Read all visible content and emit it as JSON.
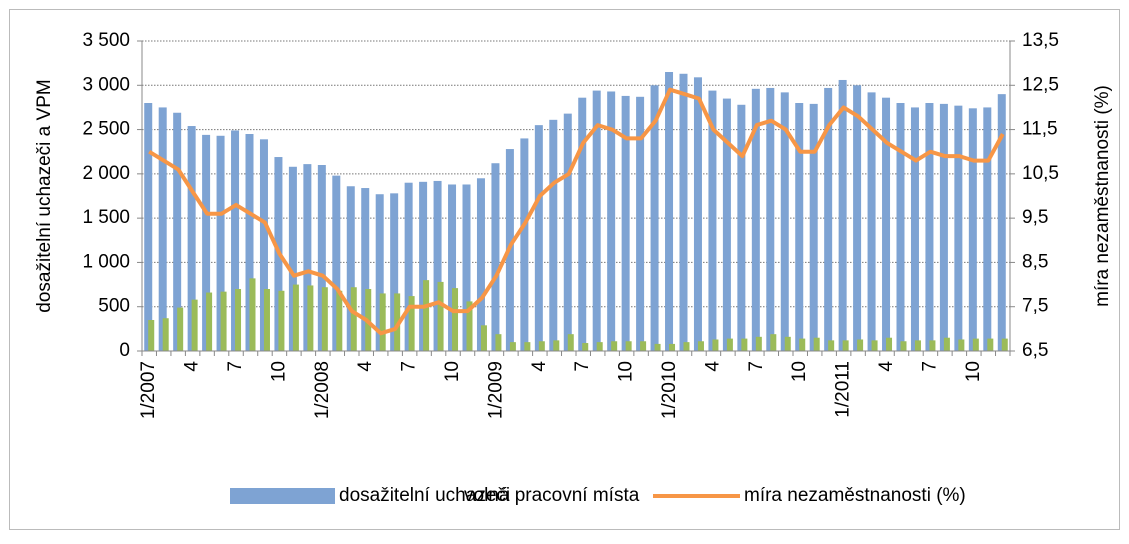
{
  "chart_data": {
    "type": "bar_line",
    "y_label": "dosažitelní uchazeči a VPM",
    "y2_label": "míra nezaměstnanosti (%)",
    "categories": [
      "1/2007",
      null,
      null,
      "4",
      null,
      null,
      "7",
      null,
      null,
      "10",
      null,
      null,
      "1/2008",
      null,
      null,
      "4",
      null,
      null,
      "7",
      null,
      null,
      "10",
      null,
      null,
      "1/2009",
      null,
      null,
      "4",
      null,
      null,
      "7",
      null,
      null,
      "10",
      null,
      null,
      "1/2010",
      null,
      null,
      "4",
      null,
      null,
      "7",
      null,
      null,
      "10",
      null,
      null,
      "1/2011",
      null,
      null,
      "4",
      null,
      null,
      "7",
      null,
      null,
      "10",
      null,
      null
    ],
    "series": [
      {
        "name": "dosažitelní uchazeči",
        "color": "#7ea3d3",
        "kind": "bar",
        "values": [
          2800,
          2750,
          2690,
          2540,
          2440,
          2430,
          2490,
          2450,
          2390,
          2190,
          2080,
          2110,
          2100,
          1980,
          1860,
          1840,
          1770,
          1780,
          1900,
          1910,
          1920,
          1880,
          1880,
          1950,
          2120,
          2280,
          2400,
          2550,
          2610,
          2680,
          2860,
          2940,
          2930,
          2880,
          2870,
          3000,
          3150,
          3130,
          3090,
          2940,
          2850,
          2780,
          2960,
          2970,
          2920,
          2800,
          2790,
          2970,
          3060,
          3000,
          2920,
          2860,
          2800,
          2750,
          2800,
          2790,
          2770,
          2740,
          2750,
          2900
        ]
      },
      {
        "name": "volná pracovní místa",
        "color": "#9bbb59",
        "kind": "bar",
        "values": [
          350,
          370,
          490,
          580,
          660,
          670,
          700,
          820,
          700,
          680,
          750,
          740,
          720,
          680,
          720,
          700,
          650,
          650,
          620,
          800,
          780,
          710,
          560,
          290,
          190,
          100,
          100,
          110,
          120,
          190,
          90,
          100,
          110,
          110,
          110,
          80,
          80,
          100,
          110,
          130,
          140,
          140,
          160,
          190,
          160,
          140,
          150,
          120,
          120,
          130,
          120,
          150,
          110,
          120,
          120,
          150,
          130,
          140,
          140,
          140
        ]
      },
      {
        "name": "míra nezaměstnanosti (%)",
        "color": "#f79646",
        "kind": "line",
        "axis": "y2",
        "values": [
          11.0,
          10.8,
          10.6,
          10.1,
          9.6,
          9.6,
          9.8,
          9.6,
          9.4,
          8.7,
          8.2,
          8.3,
          8.2,
          7.9,
          7.4,
          7.2,
          6.9,
          7.0,
          7.5,
          7.5,
          7.6,
          7.4,
          7.4,
          7.7,
          8.2,
          8.9,
          9.4,
          10.0,
          10.3,
          10.5,
          11.2,
          11.6,
          11.5,
          11.3,
          11.3,
          11.7,
          12.4,
          12.3,
          12.2,
          11.5,
          11.2,
          10.9,
          11.6,
          11.7,
          11.5,
          11.0,
          11.0,
          11.6,
          12.0,
          11.8,
          11.5,
          11.2,
          11.0,
          10.8,
          11.0,
          10.9,
          10.9,
          10.8,
          10.8,
          11.4
        ]
      }
    ],
    "ylim": [
      0,
      3500
    ],
    "yticks": [
      0,
      500,
      {
        "value": 1000,
        "label": "1 000"
      },
      {
        "value": 1500,
        "label": "1 500"
      },
      {
        "value": 2000,
        "label": "2 000"
      },
      {
        "value": 2500,
        "label": "2 500"
      },
      {
        "value": 3000,
        "label": "3 000"
      },
      {
        "value": 3500,
        "label": "3 500"
      }
    ],
    "y2lim": [
      6.5,
      13.5
    ],
    "y2ticks": [
      {
        "value": 6.5,
        "label": "6,5"
      },
      {
        "value": 7.5,
        "label": "7,5"
      },
      {
        "value": 8.5,
        "label": "8,5"
      },
      {
        "value": 9.5,
        "label": "9,5"
      },
      {
        "value": 10.5,
        "label": "10,5"
      },
      {
        "value": 11.5,
        "label": "11,5"
      },
      {
        "value": 12.5,
        "label": "12,5"
      },
      {
        "value": 13.5,
        "label": "13,5"
      }
    ],
    "grid": true,
    "legend": "bottom"
  }
}
